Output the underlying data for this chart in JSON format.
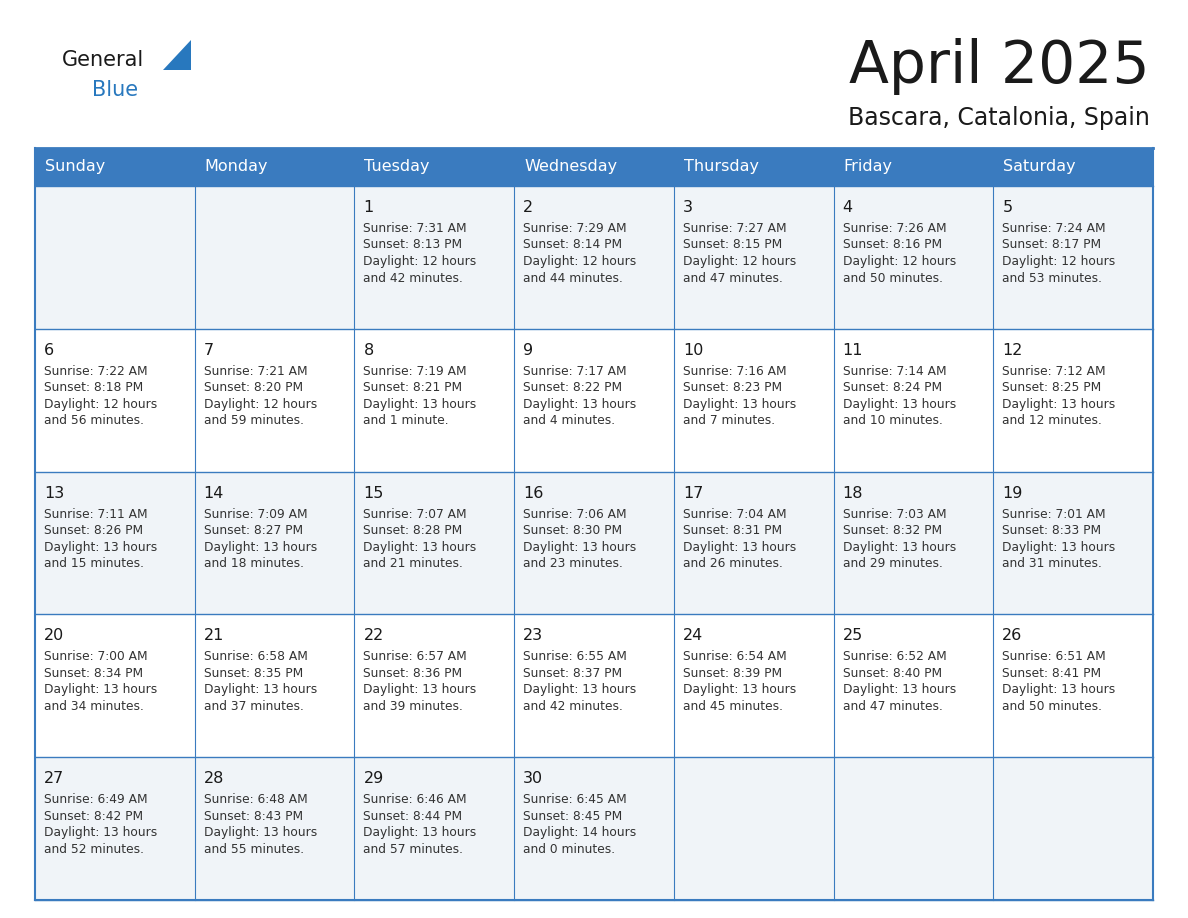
{
  "title": "April 2025",
  "subtitle": "Bascara, Catalonia, Spain",
  "header_bg": "#3A7BBF",
  "header_text": "#FFFFFF",
  "row_bg_odd": "#F0F4F8",
  "row_bg_even": "#FFFFFF",
  "border_color": "#3A7BBF",
  "day_names": [
    "Sunday",
    "Monday",
    "Tuesday",
    "Wednesday",
    "Thursday",
    "Friday",
    "Saturday"
  ],
  "title_color": "#1a1a1a",
  "subtitle_color": "#1a1a1a",
  "cell_text_color": "#333333",
  "day_num_color": "#1a1a1a",
  "logo_general_color": "#1a1a1a",
  "logo_blue_color": "#2878BE",
  "logo_triangle_color": "#2878BE",
  "weeks": [
    [
      {
        "day": "",
        "lines": []
      },
      {
        "day": "",
        "lines": []
      },
      {
        "day": "1",
        "lines": [
          "Sunrise: 7:31 AM",
          "Sunset: 8:13 PM",
          "Daylight: 12 hours",
          "and 42 minutes."
        ]
      },
      {
        "day": "2",
        "lines": [
          "Sunrise: 7:29 AM",
          "Sunset: 8:14 PM",
          "Daylight: 12 hours",
          "and 44 minutes."
        ]
      },
      {
        "day": "3",
        "lines": [
          "Sunrise: 7:27 AM",
          "Sunset: 8:15 PM",
          "Daylight: 12 hours",
          "and 47 minutes."
        ]
      },
      {
        "day": "4",
        "lines": [
          "Sunrise: 7:26 AM",
          "Sunset: 8:16 PM",
          "Daylight: 12 hours",
          "and 50 minutes."
        ]
      },
      {
        "day": "5",
        "lines": [
          "Sunrise: 7:24 AM",
          "Sunset: 8:17 PM",
          "Daylight: 12 hours",
          "and 53 minutes."
        ]
      }
    ],
    [
      {
        "day": "6",
        "lines": [
          "Sunrise: 7:22 AM",
          "Sunset: 8:18 PM",
          "Daylight: 12 hours",
          "and 56 minutes."
        ]
      },
      {
        "day": "7",
        "lines": [
          "Sunrise: 7:21 AM",
          "Sunset: 8:20 PM",
          "Daylight: 12 hours",
          "and 59 minutes."
        ]
      },
      {
        "day": "8",
        "lines": [
          "Sunrise: 7:19 AM",
          "Sunset: 8:21 PM",
          "Daylight: 13 hours",
          "and 1 minute."
        ]
      },
      {
        "day": "9",
        "lines": [
          "Sunrise: 7:17 AM",
          "Sunset: 8:22 PM",
          "Daylight: 13 hours",
          "and 4 minutes."
        ]
      },
      {
        "day": "10",
        "lines": [
          "Sunrise: 7:16 AM",
          "Sunset: 8:23 PM",
          "Daylight: 13 hours",
          "and 7 minutes."
        ]
      },
      {
        "day": "11",
        "lines": [
          "Sunrise: 7:14 AM",
          "Sunset: 8:24 PM",
          "Daylight: 13 hours",
          "and 10 minutes."
        ]
      },
      {
        "day": "12",
        "lines": [
          "Sunrise: 7:12 AM",
          "Sunset: 8:25 PM",
          "Daylight: 13 hours",
          "and 12 minutes."
        ]
      }
    ],
    [
      {
        "day": "13",
        "lines": [
          "Sunrise: 7:11 AM",
          "Sunset: 8:26 PM",
          "Daylight: 13 hours",
          "and 15 minutes."
        ]
      },
      {
        "day": "14",
        "lines": [
          "Sunrise: 7:09 AM",
          "Sunset: 8:27 PM",
          "Daylight: 13 hours",
          "and 18 minutes."
        ]
      },
      {
        "day": "15",
        "lines": [
          "Sunrise: 7:07 AM",
          "Sunset: 8:28 PM",
          "Daylight: 13 hours",
          "and 21 minutes."
        ]
      },
      {
        "day": "16",
        "lines": [
          "Sunrise: 7:06 AM",
          "Sunset: 8:30 PM",
          "Daylight: 13 hours",
          "and 23 minutes."
        ]
      },
      {
        "day": "17",
        "lines": [
          "Sunrise: 7:04 AM",
          "Sunset: 8:31 PM",
          "Daylight: 13 hours",
          "and 26 minutes."
        ]
      },
      {
        "day": "18",
        "lines": [
          "Sunrise: 7:03 AM",
          "Sunset: 8:32 PM",
          "Daylight: 13 hours",
          "and 29 minutes."
        ]
      },
      {
        "day": "19",
        "lines": [
          "Sunrise: 7:01 AM",
          "Sunset: 8:33 PM",
          "Daylight: 13 hours",
          "and 31 minutes."
        ]
      }
    ],
    [
      {
        "day": "20",
        "lines": [
          "Sunrise: 7:00 AM",
          "Sunset: 8:34 PM",
          "Daylight: 13 hours",
          "and 34 minutes."
        ]
      },
      {
        "day": "21",
        "lines": [
          "Sunrise: 6:58 AM",
          "Sunset: 8:35 PM",
          "Daylight: 13 hours",
          "and 37 minutes."
        ]
      },
      {
        "day": "22",
        "lines": [
          "Sunrise: 6:57 AM",
          "Sunset: 8:36 PM",
          "Daylight: 13 hours",
          "and 39 minutes."
        ]
      },
      {
        "day": "23",
        "lines": [
          "Sunrise: 6:55 AM",
          "Sunset: 8:37 PM",
          "Daylight: 13 hours",
          "and 42 minutes."
        ]
      },
      {
        "day": "24",
        "lines": [
          "Sunrise: 6:54 AM",
          "Sunset: 8:39 PM",
          "Daylight: 13 hours",
          "and 45 minutes."
        ]
      },
      {
        "day": "25",
        "lines": [
          "Sunrise: 6:52 AM",
          "Sunset: 8:40 PM",
          "Daylight: 13 hours",
          "and 47 minutes."
        ]
      },
      {
        "day": "26",
        "lines": [
          "Sunrise: 6:51 AM",
          "Sunset: 8:41 PM",
          "Daylight: 13 hours",
          "and 50 minutes."
        ]
      }
    ],
    [
      {
        "day": "27",
        "lines": [
          "Sunrise: 6:49 AM",
          "Sunset: 8:42 PM",
          "Daylight: 13 hours",
          "and 52 minutes."
        ]
      },
      {
        "day": "28",
        "lines": [
          "Sunrise: 6:48 AM",
          "Sunset: 8:43 PM",
          "Daylight: 13 hours",
          "and 55 minutes."
        ]
      },
      {
        "day": "29",
        "lines": [
          "Sunrise: 6:46 AM",
          "Sunset: 8:44 PM",
          "Daylight: 13 hours",
          "and 57 minutes."
        ]
      },
      {
        "day": "30",
        "lines": [
          "Sunrise: 6:45 AM",
          "Sunset: 8:45 PM",
          "Daylight: 14 hours",
          "and 0 minutes."
        ]
      },
      {
        "day": "",
        "lines": []
      },
      {
        "day": "",
        "lines": []
      },
      {
        "day": "",
        "lines": []
      }
    ]
  ]
}
